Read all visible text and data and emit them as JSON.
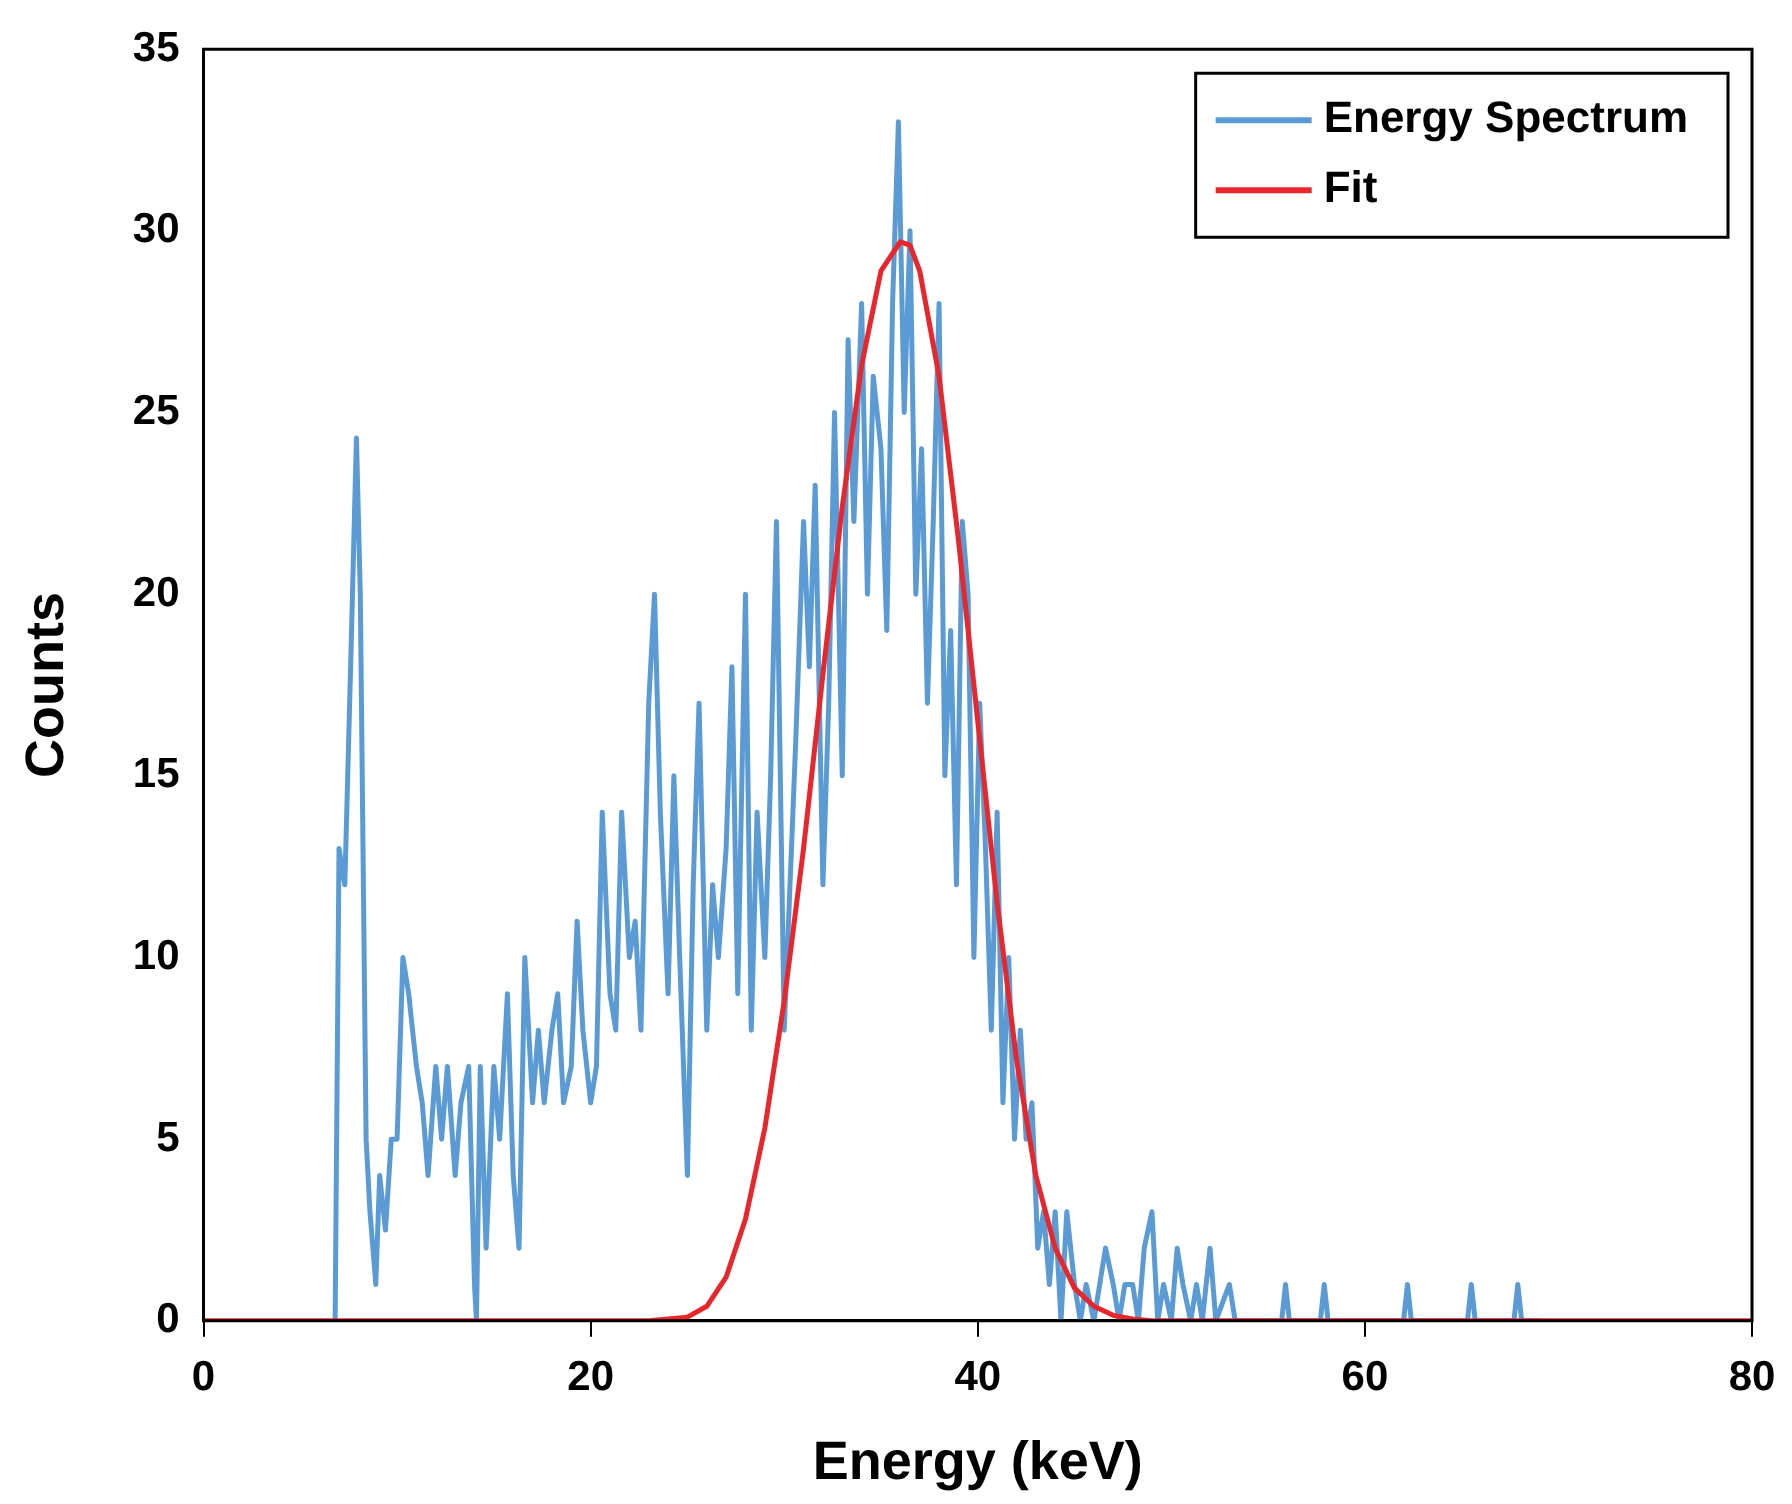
{
  "chart_data": {
    "type": "line",
    "xlabel": "Energy (keV)",
    "ylabel": "Counts",
    "xlim": [
      0,
      80
    ],
    "xticks": [
      0,
      20,
      40,
      60,
      80
    ],
    "ylim": [
      0,
      35
    ],
    "yticks": [
      0,
      5,
      10,
      15,
      20,
      25,
      30,
      35
    ],
    "grid": false,
    "legend": "top right",
    "marker": "none",
    "line_style": "solid",
    "series": [
      {
        "name": "Energy Spectrum",
        "color": "#5b9bd5",
        "x": [
          6.8,
          7.0,
          7.3,
          7.6,
          7.9,
          8.1,
          8.4,
          8.6,
          8.9,
          9.1,
          9.4,
          9.7,
          10.0,
          10.3,
          10.6,
          11.0,
          11.3,
          11.6,
          12.0,
          12.3,
          12.6,
          13.0,
          13.3,
          13.7,
          14.0,
          14.1,
          14.3,
          14.6,
          15.0,
          15.3,
          15.7,
          16.0,
          16.3,
          16.6,
          17.0,
          17.3,
          17.6,
          18.0,
          18.3,
          18.6,
          19.0,
          19.3,
          19.6,
          20.0,
          20.3,
          20.6,
          21.0,
          21.3,
          21.6,
          22.0,
          22.3,
          22.6,
          23.0,
          23.3,
          23.6,
          24.0,
          24.3,
          24.6,
          25.0,
          25.3,
          25.6,
          26.0,
          26.3,
          26.6,
          27.0,
          27.3,
          27.6,
          28.0,
          28.3,
          28.6,
          29.0,
          29.3,
          29.6,
          30.0,
          30.3,
          30.6,
          31.0,
          31.3,
          31.6,
          32.0,
          32.3,
          32.6,
          33.0,
          33.3,
          33.6,
          34.0,
          34.3,
          34.6,
          35.0,
          35.3,
          35.6,
          35.9,
          36.2,
          36.5,
          36.8,
          37.1,
          37.4,
          37.7,
          38.0,
          38.3,
          38.6,
          38.9,
          39.2,
          39.5,
          39.8,
          40.1,
          40.4,
          40.7,
          41.0,
          41.3,
          41.6,
          41.9,
          42.2,
          42.5,
          42.8,
          43.1,
          43.4,
          43.7,
          44.0,
          44.3,
          44.6,
          45.0,
          45.3,
          45.6,
          46.0,
          46.3,
          46.6,
          47.0,
          47.3,
          47.6,
          48.0,
          48.3,
          48.6,
          49.0,
          49.3,
          49.6,
          50.0,
          50.3,
          50.6,
          51.0,
          51.3,
          51.6,
          52.0,
          52.3,
          53.0,
          53.3,
          55.7,
          55.9,
          56.1,
          57.7,
          57.9,
          58.1,
          62.0,
          62.2,
          62.4,
          65.3,
          65.5,
          65.7,
          67.7,
          67.9,
          68.1,
          69.0
        ],
        "values": [
          0,
          13,
          12,
          18,
          24.3,
          20,
          5,
          3,
          1,
          4,
          2.5,
          5,
          5,
          10,
          9,
          7,
          6,
          4,
          7,
          5,
          7,
          4,
          6,
          7,
          1,
          0,
          7,
          2,
          7,
          5,
          9,
          4,
          2,
          10,
          6,
          8,
          6,
          8,
          9,
          6,
          7,
          11,
          8,
          6,
          7,
          14,
          9,
          8,
          14,
          10,
          11,
          8,
          17,
          20,
          14,
          9,
          15,
          10,
          4,
          12,
          17,
          8,
          12,
          10,
          13,
          18,
          9,
          20,
          8,
          14,
          10,
          15,
          22,
          8,
          12,
          16,
          22,
          18,
          23,
          12,
          17,
          25,
          15,
          27,
          22,
          28,
          20,
          26,
          24,
          19,
          28,
          33,
          25,
          30,
          20,
          24,
          17,
          22,
          28,
          15,
          19,
          12,
          22,
          20,
          10,
          17,
          13,
          8,
          14,
          6,
          10,
          5,
          8,
          5,
          6,
          2,
          3,
          1,
          3,
          0,
          3,
          1,
          0,
          1,
          0,
          1,
          2,
          1,
          0,
          1,
          1,
          0,
          2,
          3,
          0,
          1,
          0,
          2,
          1,
          0,
          1,
          0,
          2,
          0,
          1,
          0,
          0,
          1,
          0,
          0,
          1,
          0,
          0,
          1,
          0,
          0,
          1,
          0,
          0,
          1,
          0,
          0
        ]
      },
      {
        "name": "Fit",
        "color": "#e8262b",
        "x": [
          0,
          23,
          25,
          26,
          27,
          28,
          29,
          30,
          31,
          32,
          33,
          34,
          35,
          36,
          36.5,
          37,
          38,
          39,
          40,
          41,
          42,
          43,
          44,
          45,
          46,
          47,
          48,
          49,
          80
        ],
        "values": [
          0,
          0,
          0.1,
          0.4,
          1.2,
          2.8,
          5.3,
          8.8,
          13,
          17.8,
          22.4,
          26.3,
          28.9,
          29.7,
          29.6,
          28.9,
          26,
          21.5,
          16.5,
          11.5,
          7.2,
          4,
          2,
          0.9,
          0.4,
          0.15,
          0.05,
          0,
          0
        ]
      }
    ]
  }
}
